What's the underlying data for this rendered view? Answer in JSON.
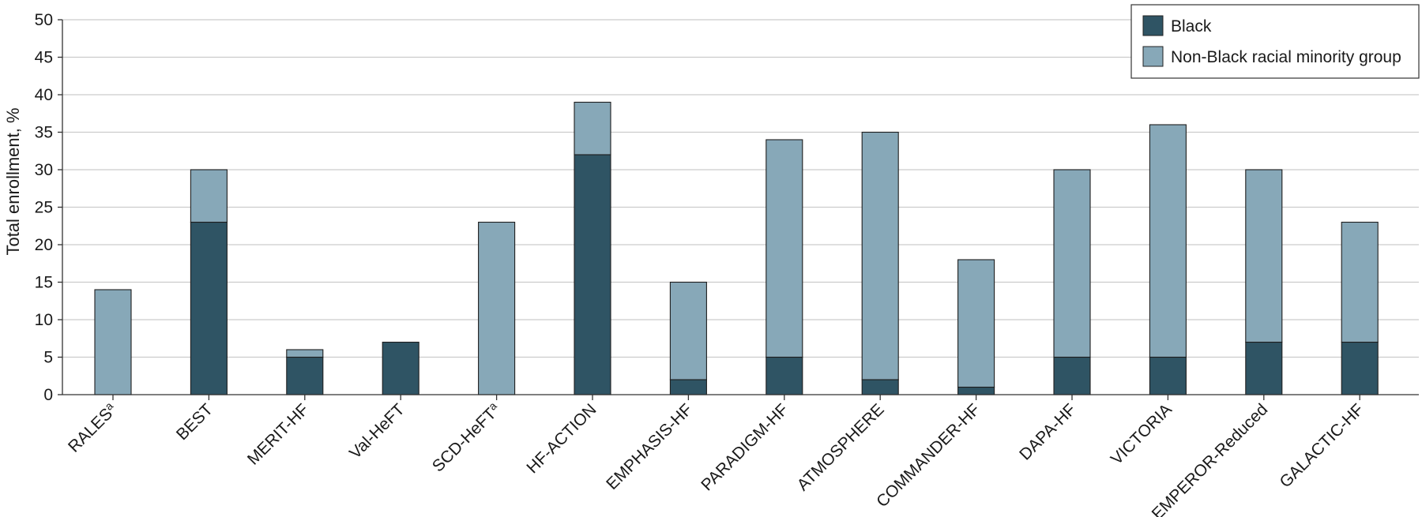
{
  "chart_data": {
    "type": "bar",
    "stacked": true,
    "categories": [
      "RALES",
      "BEST",
      "MERIT-HF",
      "Val-HeFT",
      "SCD-HeFT",
      "HF-ACTION",
      "EMPHASIS-HF",
      "PARADIGM-HF",
      "ATMOSPHERE",
      "COMMANDER-HF",
      "DAPA-HF",
      "VICTORIA",
      "EMPEROR-Reduced",
      "GALACTIC-HF"
    ],
    "category_superscripts": [
      "a",
      "",
      "",
      "",
      "a",
      "",
      "",
      "",
      "",
      "",
      "",
      "",
      "",
      ""
    ],
    "series": [
      {
        "name": "Black",
        "color": "#2f5464",
        "values": [
          0,
          23,
          5,
          7,
          0,
          32,
          2,
          5,
          2,
          1,
          5,
          5,
          7,
          7
        ]
      },
      {
        "name": "Non-Black racial minority group",
        "color": "#87a8b8",
        "values": [
          14,
          7,
          1,
          0,
          23,
          7,
          13,
          29,
          33,
          17,
          25,
          31,
          23,
          16
        ]
      }
    ],
    "ylabel": "Total enrollment, %",
    "xlabel": "",
    "ylim": [
      0,
      50
    ],
    "yticks": [
      0,
      5,
      10,
      15,
      20,
      25,
      30,
      35,
      40,
      45,
      50
    ],
    "grid": true,
    "legend_position": "top-right",
    "grid_color": "#cccccc",
    "axis_color": "#333333"
  }
}
